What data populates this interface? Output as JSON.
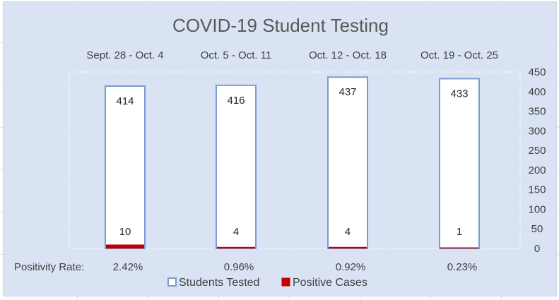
{
  "chart_data": {
    "type": "bar",
    "title": "COVID-19 Student Testing",
    "categories": [
      "Sept. 28 - Oct. 4",
      "Oct. 5 - Oct. 11",
      "Oct. 12 - Oct. 18",
      "Oct. 19 - Oct. 25"
    ],
    "series": [
      {
        "name": "Students Tested",
        "values": [
          414,
          416,
          437,
          433
        ],
        "fill": "#ffffff",
        "stroke": "#7b9bd2"
      },
      {
        "name": "Positive Cases",
        "values": [
          10,
          4,
          4,
          1
        ],
        "fill": "#c00000",
        "stroke": "#c00000"
      }
    ],
    "ylim": [
      0,
      450
    ],
    "yticks": [
      0,
      50,
      100,
      150,
      200,
      250,
      300,
      350,
      400,
      450
    ],
    "y_axis_side": "right",
    "category_labels_position": "top",
    "positivity_rate_label": "Positivity Rate:",
    "positivity_rates": [
      "2.42%",
      "0.96%",
      "0.92%",
      "0.23%"
    ],
    "legend_position": "bottom",
    "background": "#dae3f3"
  }
}
